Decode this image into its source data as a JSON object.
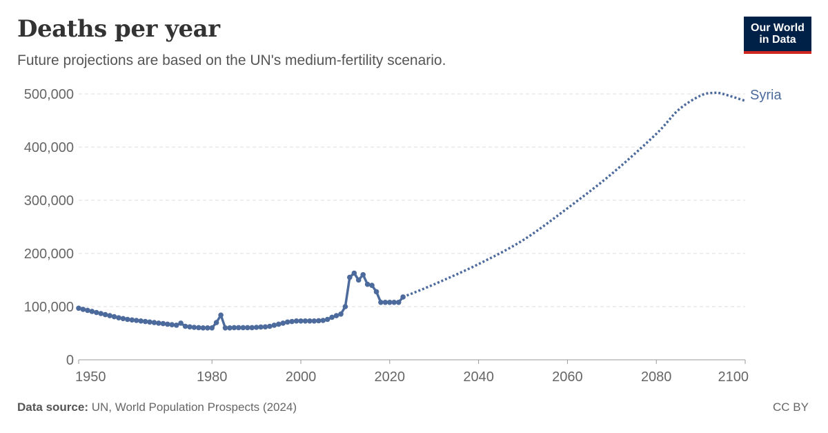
{
  "header": {
    "title": "Deaths per year",
    "subtitle": "Future projections are based on the UN's medium-fertility scenario."
  },
  "logo": {
    "line1": "Our World",
    "line2": "in Data"
  },
  "footer": {
    "source_label": "Data source:",
    "source_text": "UN, World Population Prospects (2024)",
    "license": "CC BY"
  },
  "colors": {
    "series": "#4c6a9c",
    "grid": "#dddddd",
    "axis_text": "#666666",
    "logo_bg": "#002147",
    "logo_accent": "#ce261e"
  },
  "chart_data": {
    "type": "line",
    "xlim": [
      1950,
      2100
    ],
    "ylim": [
      0,
      500000
    ],
    "x_ticks": [
      "1950",
      "1980",
      "2000",
      "2020",
      "2040",
      "2060",
      "2080",
      "2100"
    ],
    "y_ticks": [
      "0",
      "100,000",
      "200,000",
      "300,000",
      "400,000",
      "500,000"
    ],
    "grid": true,
    "series": [
      {
        "name": "Syria",
        "color": "#4c6a9c",
        "historical": {
          "x": [
            1950,
            1951,
            1952,
            1953,
            1954,
            1955,
            1956,
            1957,
            1958,
            1959,
            1960,
            1961,
            1962,
            1963,
            1964,
            1965,
            1966,
            1967,
            1968,
            1969,
            1970,
            1971,
            1972,
            1973,
            1974,
            1975,
            1976,
            1977,
            1978,
            1979,
            1980,
            1981,
            1982,
            1983,
            1984,
            1985,
            1986,
            1987,
            1988,
            1989,
            1990,
            1991,
            1992,
            1993,
            1994,
            1995,
            1996,
            1997,
            1998,
            1999,
            2000,
            2001,
            2002,
            2003,
            2004,
            2005,
            2006,
            2007,
            2008,
            2009,
            2010,
            2011,
            2012,
            2013,
            2014,
            2015,
            2016,
            2017,
            2018,
            2019,
            2020,
            2021,
            2022,
            2023
          ],
          "y": [
            97000,
            95000,
            93000,
            91000,
            89000,
            87000,
            85000,
            83000,
            81000,
            79000,
            77500,
            76000,
            75000,
            74000,
            73000,
            72000,
            71000,
            70000,
            69000,
            68000,
            67000,
            66000,
            65000,
            69000,
            63000,
            62000,
            61000,
            60500,
            60000,
            60000,
            60000,
            70000,
            84000,
            60000,
            60000,
            60500,
            60500,
            60500,
            60500,
            60500,
            61000,
            61500,
            62000,
            63000,
            65000,
            67000,
            69000,
            71000,
            72000,
            73000,
            73000,
            73000,
            73000,
            73000,
            73500,
            74000,
            76000,
            80000,
            83000,
            86000,
            100000,
            155000,
            163000,
            150000,
            160000,
            142000,
            140000,
            128000,
            108000,
            108000,
            108000,
            108000,
            108000,
            118000
          ]
        },
        "projection": {
          "x": [
            2023,
            2030,
            2040,
            2050,
            2060,
            2070,
            2080,
            2085,
            2090,
            2093,
            2095,
            2100
          ],
          "y": [
            118000,
            142000,
            180000,
            225000,
            285000,
            350000,
            425000,
            470000,
            497000,
            502000,
            500000,
            487000
          ]
        }
      }
    ]
  }
}
